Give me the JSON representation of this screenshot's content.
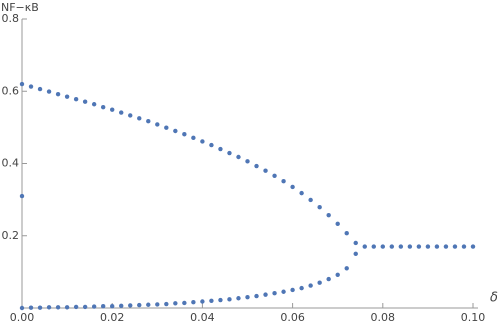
{
  "chart_data": {
    "type": "scatter",
    "y_label": "NF−κB",
    "x_label": "δ",
    "xlim": [
      0,
      0.1
    ],
    "ylim": [
      0,
      0.8
    ],
    "xticks": [
      {
        "value": 0,
        "label": "0.00"
      },
      {
        "value": 0.02,
        "label": "0.02"
      },
      {
        "value": 0.04,
        "label": "0.04"
      },
      {
        "value": 0.06,
        "label": "0.06"
      },
      {
        "value": 0.08,
        "label": "0.08"
      },
      {
        "value": 0.1,
        "label": "0.10"
      }
    ],
    "yticks": [
      0.2,
      0.4,
      0.6,
      0.8
    ],
    "series": [
      {
        "color": "#4f76b5",
        "x": [
          0,
          0.002,
          0.004,
          0.006,
          0.008,
          0.01,
          0.012,
          0.014,
          0.016,
          0.018,
          0.02,
          0.022,
          0.024,
          0.026,
          0.028,
          0.03,
          0.032,
          0.034,
          0.036,
          0.038,
          0.04,
          0.042,
          0.044,
          0.046,
          0.048,
          0.05,
          0.052,
          0.054,
          0.056,
          0.058,
          0.06,
          0.062,
          0.064,
          0.066,
          0.068,
          0.07,
          0.072,
          0.074
        ],
        "values": [
          0.62,
          0.613,
          0.606,
          0.599,
          0.592,
          0.585,
          0.578,
          0.571,
          0.564,
          0.556,
          0.549,
          0.541,
          0.533,
          0.525,
          0.517,
          0.508,
          0.499,
          0.49,
          0.481,
          0.471,
          0.461,
          0.451,
          0.44,
          0.429,
          0.418,
          0.406,
          0.393,
          0.38,
          0.366,
          0.351,
          0.335,
          0.318,
          0.299,
          0.279,
          0.257,
          0.233,
          0.207,
          0.18
        ]
      },
      {
        "color": "#4f76b5",
        "x": [
          0,
          0.002,
          0.004,
          0.006,
          0.008,
          0.01,
          0.012,
          0.014,
          0.016,
          0.018,
          0.02,
          0.022,
          0.024,
          0.026,
          0.028,
          0.03,
          0.032,
          0.034,
          0.036,
          0.038,
          0.04,
          0.042,
          0.044,
          0.046,
          0.048,
          0.05,
          0.052,
          0.054,
          0.056,
          0.058,
          0.06,
          0.062,
          0.064,
          0.066,
          0.068,
          0.07,
          0.072,
          0.074
        ],
        "values": [
          0,
          0.001,
          0.001,
          0.002,
          0.002,
          0.002,
          0.003,
          0.003,
          0.004,
          0.005,
          0.005,
          0.006,
          0.007,
          0.008,
          0.009,
          0.01,
          0.011,
          0.013,
          0.014,
          0.016,
          0.018,
          0.02,
          0.022,
          0.024,
          0.027,
          0.03,
          0.033,
          0.037,
          0.041,
          0.045,
          0.05,
          0.055,
          0.062,
          0.07,
          0.08,
          0.092,
          0.11,
          0.15
        ]
      },
      {
        "color": "#4f76b5",
        "x": [
          0.076,
          0.078,
          0.08,
          0.082,
          0.084,
          0.086,
          0.088,
          0.09,
          0.092,
          0.094,
          0.096,
          0.098,
          0.1
        ],
        "values": [
          0.17,
          0.17,
          0.17,
          0.17,
          0.17,
          0.17,
          0.17,
          0.17,
          0.17,
          0.17,
          0.17,
          0.17,
          0.17
        ]
      },
      {
        "color": "#4f76b5",
        "x": [
          0
        ],
        "values": [
          0.31
        ]
      }
    ]
  }
}
